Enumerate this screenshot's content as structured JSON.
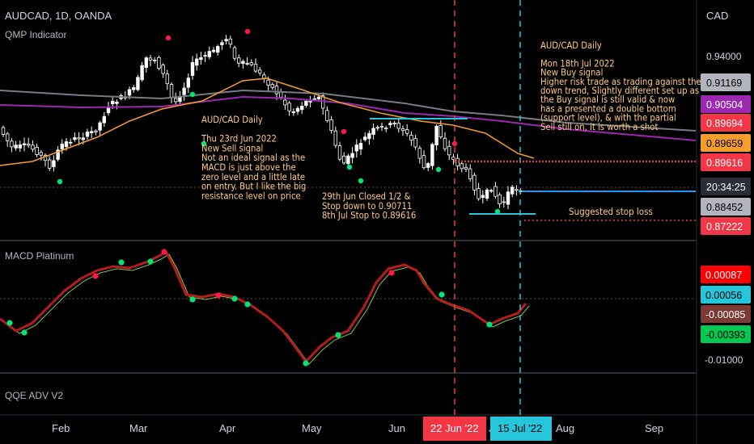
{
  "header": {
    "symbol_line": "AUDCAD, 1D, OANDA",
    "indicator1": "QMP Indicator"
  },
  "panes": {
    "macd_title": "MACD Platinum",
    "qqe_title": "QQE ADV V2"
  },
  "axis": {
    "currency": "CAD",
    "price_ticks": [
      "0.94000"
    ],
    "macd_ticks": [
      "-0.01000"
    ],
    "time_labels": [
      "Feb",
      "Mar",
      "Apr",
      "May",
      "Jun",
      "Jul",
      "Aug",
      "Sep"
    ]
  },
  "price_badges": [
    {
      "text": "0.91169",
      "bg": "#b2b5be",
      "fg": "#000000"
    },
    {
      "text": "0.90504",
      "bg": "#9c27b0",
      "fg": "#ffffff"
    },
    {
      "text": "0.89694",
      "bg": "#f23645",
      "fg": "#ffffff"
    },
    {
      "text": "0.89659",
      "bg": "#f59d2a",
      "fg": "#000000"
    },
    {
      "text": "0.89616",
      "bg": "#f23645",
      "fg": "#ffffff"
    },
    {
      "text": "20:34:25",
      "bg": "#2a2e39",
      "fg": "#ffffff"
    },
    {
      "text": "0.88452",
      "bg": "#b2b5be",
      "fg": "#000000"
    },
    {
      "text": "0.87222",
      "bg": "#f23645",
      "fg": "#ffffff"
    }
  ],
  "macd_badges": [
    {
      "text": "0.00087",
      "bg": "#ff0000",
      "fg": "#ffffff"
    },
    {
      "text": "0.00056",
      "bg": "#26c6da",
      "fg": "#000000"
    },
    {
      "text": "-0.00085",
      "bg": "#7b3a34",
      "fg": "#ffffff"
    },
    {
      "text": "-0.00393",
      "bg": "#00c853",
      "fg": "#000000"
    }
  ],
  "date_badges": [
    {
      "text": "22 Jun '22",
      "bg": "#f23645"
    },
    {
      "text": "15 Jul '22",
      "bg": "#26c6da"
    }
  ],
  "annotations": {
    "sell": [
      "AUD/CAD Daily",
      "",
      "Thu 23rd Jun 2022",
      "New Sell signal",
      "Not an ideal signal as the",
      "MACD is just above the",
      "zero level and a little late",
      "on entry. But I like the big",
      "resistance level on price"
    ],
    "buy": [
      "AUD/CAD Daily",
      "",
      "Mon 18th Jul 2022",
      "New Buy signal",
      "Higher risk trade as trading against the",
      "down trend, Slightly different set up as",
      "the Buy signal is still valid & now",
      "has a presented a double bottom",
      "(support level), & with the partial",
      "Sell still on, it is worth a shot"
    ],
    "stops": [
      "29th Jun Closed 1/2 &",
      "Stop down to 0.90711",
      "8th Jul Stop to 0.89616"
    ],
    "stop_loss": "Suggested stop loss"
  },
  "colors": {
    "up": "#ffffff",
    "down": "#ffffff",
    "ma_orange": "#f59d2a",
    "ma_purple": "#9c27b0",
    "ma_grey": "#787b86",
    "sell_line": "#f23645",
    "buy_line": "#26c6da",
    "text_orange": "#ffcc80"
  }
}
